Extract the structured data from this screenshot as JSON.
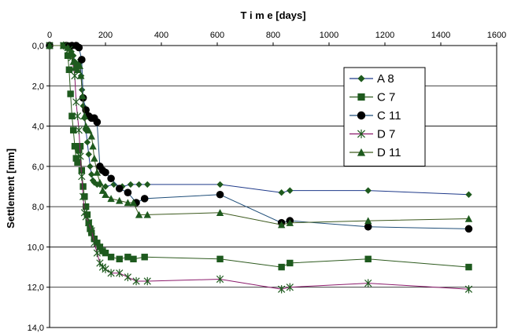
{
  "chart_data": {
    "type": "line",
    "title": "",
    "xlabel": "T i m e  [days]",
    "ylabel": "Settlement  [mm]",
    "xlim": [
      0,
      1600
    ],
    "ylim": [
      0,
      14
    ],
    "y_inverted": true,
    "x_axis_position": "top",
    "xticks": [
      0,
      200,
      400,
      600,
      800,
      1000,
      1200,
      1400,
      1600
    ],
    "xtick_labels": [
      "0",
      "200",
      "400",
      "600",
      "800",
      "1000",
      "1200",
      "1400",
      "1600"
    ],
    "yticks": [
      0,
      2,
      4,
      6,
      8,
      10,
      12,
      14
    ],
    "ytick_labels": [
      "0,0",
      "2,0",
      "4,0",
      "6,0",
      "8,0",
      "10,0",
      "12,0",
      "14,0"
    ],
    "grid": "horizontal",
    "legend_position": "top-right",
    "series": [
      {
        "name": "A 8",
        "marker": "diamond",
        "color": "#1f3a8a",
        "marker_color": "#1e5a1e",
        "points": [
          [
            0,
            0
          ],
          [
            50,
            0
          ],
          [
            65,
            0
          ],
          [
            72,
            0.1
          ],
          [
            78,
            0.3
          ],
          [
            85,
            0.5
          ],
          [
            90,
            0.8
          ],
          [
            95,
            1.0
          ],
          [
            100,
            1.1
          ],
          [
            105,
            0.9
          ],
          [
            110,
            0.7
          ],
          [
            113,
            1.5
          ],
          [
            116,
            2.2
          ],
          [
            120,
            3.0
          ],
          [
            125,
            3.6
          ],
          [
            130,
            4.2
          ],
          [
            135,
            4.8
          ],
          [
            140,
            5.4
          ],
          [
            145,
            6.0
          ],
          [
            150,
            6.4
          ],
          [
            155,
            6.7
          ],
          [
            160,
            6.8
          ],
          [
            170,
            6.9
          ],
          [
            180,
            6.9
          ],
          [
            200,
            7.0
          ],
          [
            230,
            6.9
          ],
          [
            260,
            7.0
          ],
          [
            290,
            6.9
          ],
          [
            320,
            6.9
          ],
          [
            350,
            6.9
          ],
          [
            610,
            6.9
          ],
          [
            830,
            7.3
          ],
          [
            860,
            7.2
          ],
          [
            1140,
            7.2
          ],
          [
            1500,
            7.4
          ]
        ]
      },
      {
        "name": "C 7",
        "marker": "square",
        "color": "#2d5a1e",
        "marker_color": "#1e5a1e",
        "points": [
          [
            0,
            0
          ],
          [
            50,
            0
          ],
          [
            60,
            0
          ],
          [
            65,
            0.5
          ],
          [
            70,
            1.2
          ],
          [
            75,
            2.4
          ],
          [
            80,
            3.5
          ],
          [
            85,
            4.2
          ],
          [
            90,
            5.0
          ],
          [
            95,
            5.6
          ],
          [
            100,
            5.8
          ],
          [
            105,
            5.2
          ],
          [
            110,
            5.0
          ],
          [
            115,
            6.2
          ],
          [
            120,
            7.0
          ],
          [
            125,
            7.5
          ],
          [
            130,
            8.0
          ],
          [
            135,
            8.4
          ],
          [
            140,
            8.8
          ],
          [
            145,
            9.1
          ],
          [
            150,
            9.3
          ],
          [
            160,
            9.6
          ],
          [
            170,
            9.8
          ],
          [
            180,
            10.0
          ],
          [
            190,
            10.2
          ],
          [
            200,
            10.3
          ],
          [
            220,
            10.5
          ],
          [
            250,
            10.6
          ],
          [
            280,
            10.5
          ],
          [
            300,
            10.6
          ],
          [
            340,
            10.5
          ],
          [
            610,
            10.6
          ],
          [
            830,
            11.0
          ],
          [
            860,
            10.8
          ],
          [
            1140,
            10.6
          ],
          [
            1500,
            11.0
          ]
        ]
      },
      {
        "name": "C 11",
        "marker": "circle",
        "color": "#1f4e79",
        "marker_color": "#000000",
        "points": [
          [
            0,
            0
          ],
          [
            60,
            0
          ],
          [
            80,
            0
          ],
          [
            95,
            0
          ],
          [
            105,
            0.1
          ],
          [
            115,
            0.7
          ],
          [
            120,
            2.6
          ],
          [
            130,
            3.2
          ],
          [
            140,
            3.5
          ],
          [
            150,
            3.6
          ],
          [
            160,
            3.6
          ],
          [
            170,
            3.8
          ],
          [
            180,
            6.0
          ],
          [
            190,
            6.2
          ],
          [
            200,
            6.3
          ],
          [
            220,
            6.6
          ],
          [
            250,
            7.1
          ],
          [
            280,
            7.3
          ],
          [
            310,
            7.8
          ],
          [
            340,
            7.6
          ],
          [
            610,
            7.4
          ],
          [
            830,
            8.8
          ],
          [
            860,
            8.7
          ],
          [
            1140,
            9.0
          ],
          [
            1500,
            9.1
          ]
        ]
      },
      {
        "name": "D 7",
        "marker": "star",
        "color": "#8b1a6b",
        "marker_color": "#1e5a1e",
        "points": [
          [
            0,
            0
          ],
          [
            50,
            0
          ],
          [
            70,
            0.2
          ],
          [
            80,
            0.6
          ],
          [
            90,
            1.5
          ],
          [
            95,
            2.8
          ],
          [
            100,
            3.5
          ],
          [
            105,
            4.2
          ],
          [
            110,
            5.5
          ],
          [
            115,
            6.5
          ],
          [
            120,
            7.5
          ],
          [
            125,
            8.3
          ],
          [
            130,
            8.5
          ],
          [
            140,
            8.8
          ],
          [
            150,
            9.2
          ],
          [
            160,
            9.8
          ],
          [
            170,
            10.3
          ],
          [
            180,
            10.8
          ],
          [
            190,
            11.0
          ],
          [
            200,
            11.1
          ],
          [
            220,
            11.3
          ],
          [
            250,
            11.3
          ],
          [
            280,
            11.5
          ],
          [
            310,
            11.7
          ],
          [
            350,
            11.7
          ],
          [
            610,
            11.6
          ],
          [
            830,
            12.1
          ],
          [
            860,
            12.0
          ],
          [
            1140,
            11.8
          ],
          [
            1500,
            12.1
          ]
        ]
      },
      {
        "name": "D 11",
        "marker": "triangle",
        "color": "#3d5a1e",
        "marker_color": "#1e5a1e",
        "points": [
          [
            0,
            0
          ],
          [
            50,
            0
          ],
          [
            65,
            0.1
          ],
          [
            75,
            0.4
          ],
          [
            85,
            0.8
          ],
          [
            90,
            1.1
          ],
          [
            100,
            1.2
          ],
          [
            108,
            1.0
          ],
          [
            112,
            1.5
          ],
          [
            118,
            2.5
          ],
          [
            125,
            3.5
          ],
          [
            130,
            4.0
          ],
          [
            140,
            4.2
          ],
          [
            150,
            4.5
          ],
          [
            155,
            5.0
          ],
          [
            160,
            5.6
          ],
          [
            170,
            6.3
          ],
          [
            180,
            6.8
          ],
          [
            190,
            7.2
          ],
          [
            200,
            7.4
          ],
          [
            220,
            7.6
          ],
          [
            250,
            7.7
          ],
          [
            280,
            7.8
          ],
          [
            300,
            7.8
          ],
          [
            320,
            8.4
          ],
          [
            350,
            8.4
          ],
          [
            610,
            8.3
          ],
          [
            830,
            8.9
          ],
          [
            860,
            8.8
          ],
          [
            1140,
            8.7
          ],
          [
            1500,
            8.6
          ]
        ]
      }
    ]
  }
}
